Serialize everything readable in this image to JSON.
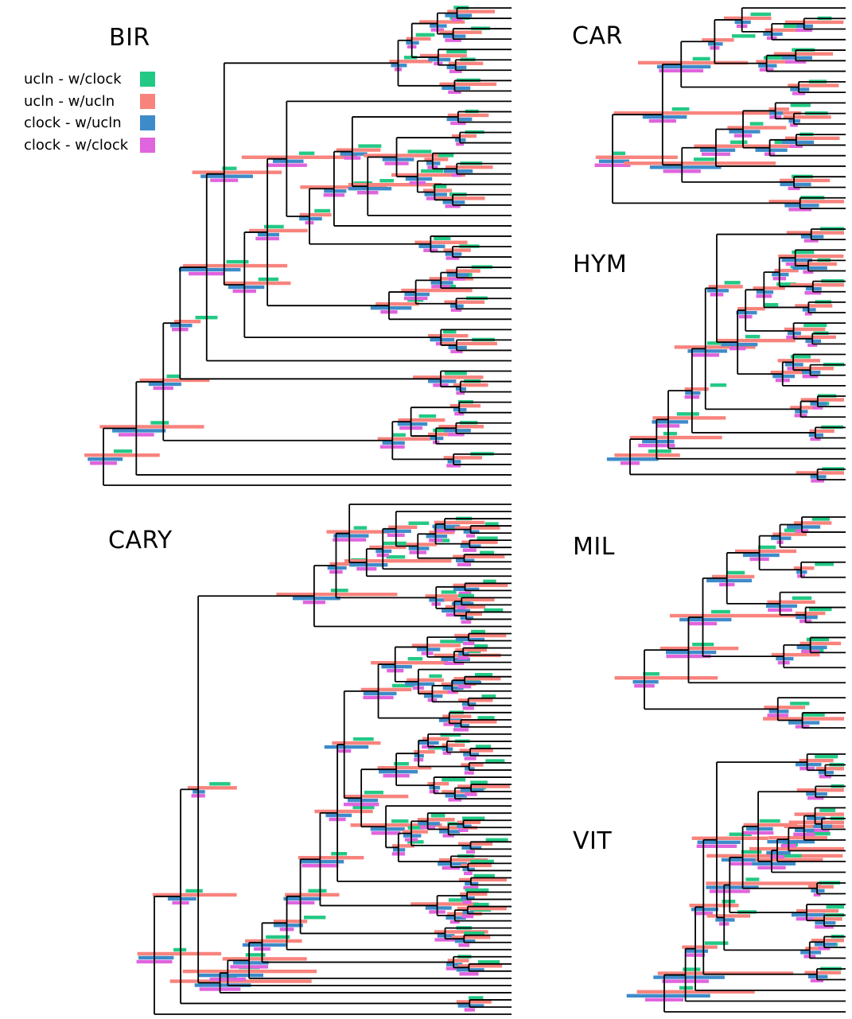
{
  "panels": [
    {
      "id": "bir",
      "title": "BIR",
      "taxa": 47,
      "seed": 11,
      "levels": 9
    },
    {
      "id": "car",
      "title": "CAR",
      "taxa": 20,
      "seed": 23,
      "levels": 7
    },
    {
      "id": "hym",
      "title": "HYM",
      "taxa": 25,
      "seed": 37,
      "levels": 7
    },
    {
      "id": "cary",
      "title": "CARY",
      "taxa": 72,
      "seed": 53,
      "levels": 10
    },
    {
      "id": "mil",
      "title": "MIL",
      "taxa": 15,
      "seed": 71,
      "levels": 7
    },
    {
      "id": "vit",
      "title": "VIT",
      "taxa": 25,
      "seed": 97,
      "levels": 8
    }
  ],
  "legend": [
    {
      "label": "ucln - w/clock",
      "color": "#22c985"
    },
    {
      "label": "ucln - w/ucln",
      "color": "#f8837d"
    },
    {
      "label": "clock - w/ucln",
      "color": "#3e8bc9"
    },
    {
      "label": "clock - w/clock",
      "color": "#e064dd"
    }
  ]
}
